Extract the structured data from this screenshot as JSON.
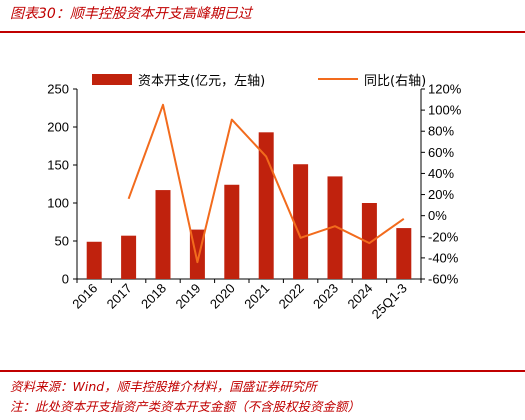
{
  "header": {
    "title": "图表30：顺丰控股资本开支高峰期已过"
  },
  "footer": {
    "source": "资料来源：Wind，顺丰控股推介材料，国盛证券研究所",
    "note": "注：此处资本开支指资产类资本开支金额（不含股权投资金额）"
  },
  "colors": {
    "accent": "#c00000",
    "bar": "#c0220d",
    "line": "#f26b1d"
  },
  "chart_data": {
    "type": "bar",
    "categories": [
      "2016",
      "2017",
      "2018",
      "2019",
      "2020",
      "2021",
      "2022",
      "2023",
      "2024",
      "25Q1-3"
    ],
    "series": [
      {
        "name": "资本开支(亿元，左轴)",
        "type": "bar",
        "axis": "left",
        "values": [
          49,
          57,
          117,
          65,
          124,
          193,
          151,
          135,
          100,
          67
        ]
      },
      {
        "name": "同比(右轴)",
        "type": "line",
        "axis": "right",
        "values": [
          null,
          16,
          105,
          -44,
          91,
          56,
          -21,
          -10,
          -26,
          -3
        ]
      }
    ],
    "y_left": {
      "min": 0,
      "max": 250,
      "ticks": [
        "0",
        "50",
        "100",
        "150",
        "200",
        "250"
      ]
    },
    "y_right": {
      "min": -60,
      "max": 120,
      "ticks": [
        "-60%",
        "-40%",
        "-20%",
        "0%",
        "20%",
        "40%",
        "60%",
        "80%",
        "100%",
        "120%"
      ]
    },
    "grid": false,
    "legend_position": "top"
  }
}
